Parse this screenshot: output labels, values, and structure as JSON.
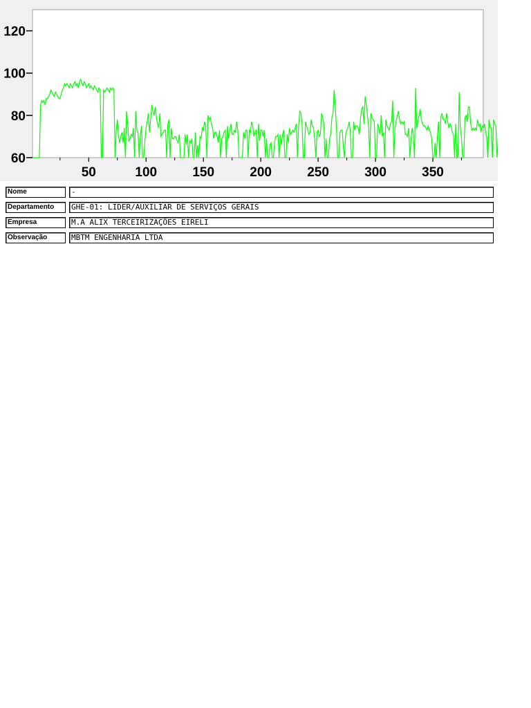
{
  "chart_data": {
    "type": "line",
    "title": "",
    "xlabel": "",
    "ylabel": "",
    "xlim": [
      1,
      394
    ],
    "ylim": [
      60,
      130
    ],
    "xticks": [
      50,
      100,
      150,
      200,
      250,
      300,
      350
    ],
    "yticks": [
      60,
      80,
      100,
      120
    ],
    "grid": false,
    "line_color": "#00ff00",
    "series": [
      {
        "x_start": 1,
        "x_step": 1,
        "y": [
          60,
          60,
          60,
          60,
          60,
          60,
          60,
          85,
          87,
          86,
          87,
          85,
          88,
          88,
          89,
          90,
          92,
          91,
          90,
          89,
          91,
          90,
          89,
          88,
          88,
          90,
          92,
          93,
          95,
          94,
          95,
          94,
          93,
          95,
          94,
          93,
          95,
          96,
          94,
          95,
          93,
          96,
          97,
          95,
          94,
          96,
          95,
          93,
          94,
          95,
          93,
          94,
          93,
          92,
          94,
          93,
          92,
          91,
          93,
          92,
          60,
          60,
          92,
          91,
          92,
          93,
          92,
          91,
          93,
          92,
          93,
          92,
          60,
          73,
          78,
          70,
          67,
          70,
          72,
          67,
          74,
          60,
          82,
          76,
          68,
          69,
          71,
          70,
          74,
          60,
          82,
          73,
          72,
          60,
          70,
          75,
          60,
          60,
          68,
          74,
          77,
          81,
          72,
          78,
          85,
          82,
          80,
          84,
          79,
          76,
          74,
          81,
          70,
          71,
          72,
          73,
          73,
          60,
          76,
          78,
          60,
          74,
          69,
          69,
          70,
          70,
          68,
          67,
          71,
          60,
          60,
          60,
          60,
          71,
          66,
          71,
          60,
          68,
          67,
          69,
          60,
          60,
          72,
          60,
          66,
          60,
          70,
          69,
          74,
          73,
          77,
          75,
          60,
          80,
          78,
          79,
          76,
          74,
          69,
          72,
          72,
          70,
          67,
          73,
          60,
          69,
          70,
          72,
          73,
          60,
          75,
          69,
          73,
          76,
          71,
          71,
          73,
          72,
          77,
          73,
          60,
          60,
          60,
          60,
          72,
          69,
          73,
          73,
          60,
          73,
          72,
          77,
          75,
          70,
          72,
          73,
          60,
          76,
          68,
          73,
          73,
          70,
          73,
          60,
          69,
          60,
          60,
          66,
          67,
          60,
          60,
          67,
          70,
          70,
          71,
          60,
          71,
          66,
          71,
          73,
          60,
          60,
          71,
          67,
          74,
          71,
          72,
          73,
          72,
          74,
          76,
          60,
          75,
          82,
          81,
          76,
          60,
          60,
          77,
          75,
          73,
          71,
          72,
          78,
          75,
          74,
          69,
          60,
          72,
          73,
          70,
          71,
          81,
          79,
          76,
          60,
          69,
          60,
          60,
          69,
          71,
          79,
          81,
          92,
          84,
          74,
          60,
          60,
          72,
          73,
          73,
          65,
          60,
          71,
          73,
          74,
          77,
          73,
          60,
          60,
          77,
          73,
          75,
          75,
          74,
          71,
          79,
          83,
          84,
          76,
          89,
          85,
          80,
          75,
          60,
          81,
          79,
          78,
          77,
          60,
          60,
          76,
          74,
          71,
          80,
          70,
          72,
          60,
          78,
          75,
          74,
          73,
          76,
          77,
          87,
          60,
          74,
          77,
          80,
          82,
          78,
          76,
          77,
          76,
          77,
          71,
          71,
          70,
          74,
          60,
          69,
          74,
          71,
          60,
          93,
          74,
          77,
          80,
          83,
          78,
          76,
          75,
          75,
          74,
          73,
          75,
          73,
          72,
          69,
          60,
          60,
          67,
          60,
          70,
          77,
          60,
          79,
          81,
          78,
          78,
          76,
          81,
          77,
          74,
          76,
          75,
          72,
          71,
          60,
          76,
          60,
          61,
          91,
          74,
          69,
          60,
          60,
          79,
          80,
          77,
          84,
          84,
          76,
          73,
          74,
          73,
          74,
          73,
          78,
          75,
          76,
          72,
          75,
          74,
          76,
          72,
          70,
          60,
          78,
          74,
          74,
          60,
          78,
          76,
          75,
          60,
          69,
          62,
          60,
          76,
          60,
          71,
          73
        ]
      }
    ]
  },
  "info": {
    "nome": {
      "label": "Nome",
      "value": "-"
    },
    "departamento": {
      "label": "Departamento",
      "value": "GHE-01: LIDER/AUXILIAR DE SERVIÇOS GERAIS"
    },
    "empresa": {
      "label": "Empresa",
      "value": "M.A ALIX TERCEIRIZAÇÕES EIRELI"
    },
    "observacao": {
      "label": "Observação",
      "value": "MBTM ENGENHARIA LTDA"
    }
  }
}
